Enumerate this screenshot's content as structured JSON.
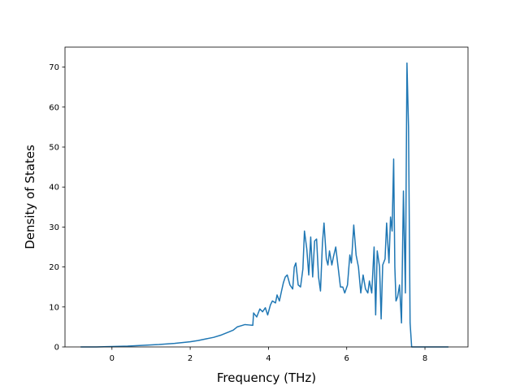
{
  "chart_data": {
    "type": "line",
    "title": "",
    "xlabel": "Frequency (THz)",
    "ylabel": "Density of States",
    "xlim": [
      -1.2,
      9.1
    ],
    "ylim": [
      0,
      75
    ],
    "xticks": [
      0,
      2,
      4,
      6,
      8
    ],
    "yticks": [
      0,
      10,
      20,
      30,
      40,
      50,
      60,
      70
    ],
    "grid": false,
    "legend": "none",
    "line_color": "#1f77b4",
    "series": [
      {
        "x": [
          -0.8,
          -0.4,
          0.0,
          0.4,
          0.8,
          1.2,
          1.6,
          2.0,
          2.2,
          2.4,
          2.6,
          2.8,
          3.0,
          3.1,
          3.2,
          3.3,
          3.4,
          3.5,
          3.6,
          3.62,
          3.7,
          3.78,
          3.85,
          3.92,
          3.98,
          4.05,
          4.1,
          4.18,
          4.22,
          4.28,
          4.33,
          4.38,
          4.43,
          4.48,
          4.55,
          4.62,
          4.66,
          4.7,
          4.76,
          4.82,
          4.88,
          4.92,
          4.98,
          5.03,
          5.08,
          5.13,
          5.18,
          5.23,
          5.28,
          5.33,
          5.38,
          5.42,
          5.48,
          5.52,
          5.56,
          5.62,
          5.66,
          5.72,
          5.78,
          5.84,
          5.9,
          5.95,
          6.02,
          6.08,
          6.12,
          6.18,
          6.24,
          6.3,
          6.36,
          6.42,
          6.48,
          6.54,
          6.58,
          6.64,
          6.7,
          6.74,
          6.78,
          6.84,
          6.88,
          6.92,
          6.98,
          7.02,
          7.08,
          7.12,
          7.16,
          7.2,
          7.23,
          7.26,
          7.3,
          7.35,
          7.4,
          7.45,
          7.5,
          7.54,
          7.58,
          7.62,
          7.66,
          7.7,
          7.74,
          7.78,
          7.82,
          7.86,
          8.2,
          8.6
        ],
        "y": [
          0,
          0,
          0.1,
          0.2,
          0.4,
          0.6,
          0.9,
          1.3,
          1.6,
          2.0,
          2.4,
          3.0,
          3.8,
          4.2,
          5.0,
          5.3,
          5.6,
          5.5,
          5.4,
          8.5,
          7.5,
          9.5,
          8.8,
          9.8,
          8.0,
          10.5,
          11.5,
          11.0,
          13.0,
          11.5,
          13.8,
          16.0,
          17.5,
          18.0,
          15.5,
          14.5,
          20.0,
          21.0,
          15.5,
          15.0,
          19.5,
          29.0,
          24.5,
          18.0,
          27.5,
          17.5,
          26.5,
          27.0,
          17.5,
          14.0,
          26.0,
          31.0,
          22.0,
          20.5,
          24.0,
          20.5,
          22.5,
          25.0,
          20.0,
          15.0,
          15.0,
          13.5,
          15.5,
          23.0,
          21.0,
          30.5,
          23.0,
          20.0,
          13.5,
          18.0,
          14.5,
          13.5,
          16.5,
          13.5,
          25.0,
          8.0,
          24.0,
          20.0,
          7.0,
          20.5,
          22.0,
          31.0,
          21.0,
          32.5,
          29.0,
          47.0,
          20.0,
          11.5,
          12.5,
          15.5,
          6.0,
          39.0,
          13.5,
          71.0,
          55.0,
          6.0,
          0,
          0,
          0,
          0,
          0,
          0,
          0,
          0
        ]
      }
    ]
  }
}
